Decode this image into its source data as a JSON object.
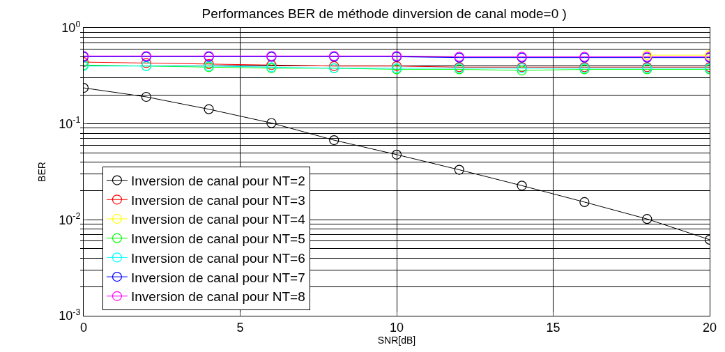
{
  "chart_data": {
    "type": "line",
    "title": "Performances BER de méthode dinversion de canal mode=0 )",
    "xlabel": "SNR[dB]",
    "ylabel": "BER",
    "x": [
      0,
      2,
      4,
      6,
      8,
      10,
      12,
      14,
      16,
      18,
      20
    ],
    "series": [
      {
        "name": "Inversion de canal pour NT=2",
        "color": "#000000",
        "values": [
          0.237,
          0.191,
          0.142,
          0.102,
          0.0676,
          0.0478,
          0.0332,
          0.0227,
          0.0153,
          0.0102,
          0.0062
        ]
      },
      {
        "name": "Inversion de canal pour NT=3",
        "color": "#ff0000",
        "values": [
          0.44,
          0.43,
          0.42,
          0.41,
          0.4,
          0.4,
          0.39,
          0.39,
          0.39,
          0.39,
          0.39
        ]
      },
      {
        "name": "Inversion de canal pour NT=4",
        "color": "#ffff00",
        "values": [
          null,
          null,
          null,
          null,
          null,
          null,
          null,
          null,
          null,
          0.52,
          0.52
        ]
      },
      {
        "name": "Inversion de canal pour NT=5",
        "color": "#00ff00",
        "values": [
          0.41,
          0.4,
          0.39,
          0.38,
          0.38,
          0.37,
          0.37,
          0.36,
          0.37,
          0.37,
          0.37
        ]
      },
      {
        "name": "Inversion de canal pour NT=6",
        "color": "#00ffff",
        "values": [
          0.4,
          0.4,
          0.4,
          0.39,
          0.38,
          0.38,
          0.38,
          0.38,
          0.38,
          0.38,
          0.38
        ]
      },
      {
        "name": "Inversion de canal pour NT=7",
        "color": "#0000ff",
        "values": [
          0.5,
          0.5,
          0.5,
          0.5,
          0.5,
          0.5,
          0.49,
          0.49,
          0.49,
          0.49,
          0.49
        ]
      },
      {
        "name": "Inversion de canal pour NT=8",
        "color": "#ff00ff",
        "values": [
          0.51,
          0.51,
          0.51,
          0.51,
          0.51,
          0.51,
          0.5,
          0.5,
          0.5,
          0.5,
          0.5
        ]
      }
    ],
    "log": "y",
    "xlim": [
      0,
      20
    ],
    "xticks": [
      0,
      5,
      10,
      15,
      20
    ],
    "ylim": [
      0.001,
      1
    ],
    "yticks": [
      {
        "value": 0.001,
        "label": "10$^{-3}$"
      },
      {
        "value": 0.01,
        "label": "10$^{-2}$"
      },
      {
        "value": 0.1,
        "label": "10$^{-1}$"
      },
      {
        "value": 1,
        "label": "10$^{0}$"
      }
    ],
    "grid": true,
    "legend": "bottom left",
    "marker": "circle",
    "line_style": "solid"
  }
}
